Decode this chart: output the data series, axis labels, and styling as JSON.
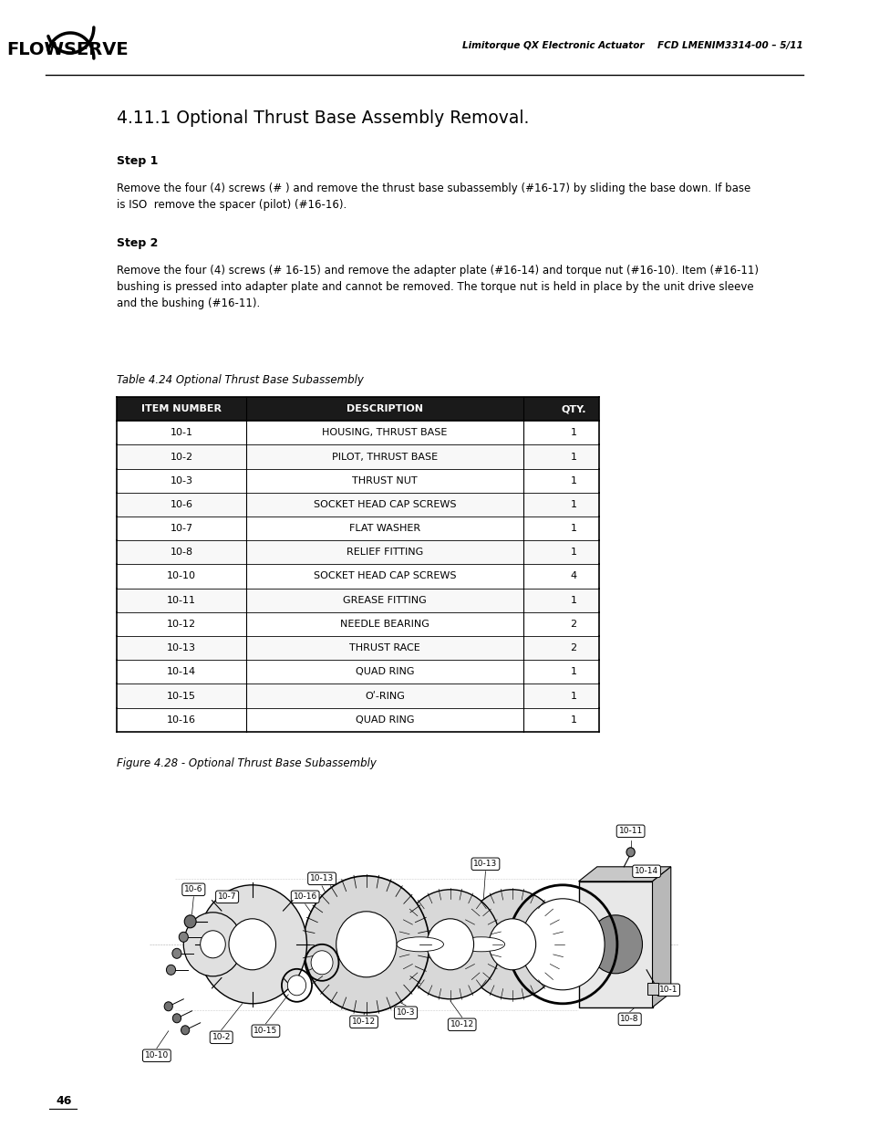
{
  "page_width": 9.54,
  "page_height": 12.35,
  "background_color": "#ffffff",
  "header_right": "Limitorque QX Electronic Actuator    FCD LMENIM3314-00 – 5/11",
  "title": "4.11.1 Optional Thrust Base Assembly Removal.",
  "step1_label": "Step 1",
  "step1_text": "Remove the four (4) screws (# ) and remove the thrust base subassembly (#16-17) by sliding the base down. If base\nis ISO  remove the spacer (pilot) (#16-16).",
  "step2_label": "Step 2",
  "step2_text": "Remove the four (4) screws (# 16-15) and remove the adapter plate (#16-14) and torque nut (#16-10). Item (#16-11)\nbushing is pressed into adapter plate and cannot be removed. The torque nut is held in place by the unit drive sleeve\nand the bushing (#16-11).",
  "table_caption": "Table 4.24 Optional Thrust Base Subassembly",
  "table_header": [
    "ITEM NUMBER",
    "DESCRIPTION",
    "QTY."
  ],
  "table_rows": [
    [
      "10-1",
      "HOUSING, THRUST BASE",
      "1"
    ],
    [
      "10-2",
      "PILOT, THRUST BASE",
      "1"
    ],
    [
      "10-3",
      "THRUST NUT",
      "1"
    ],
    [
      "10-6",
      "SOCKET HEAD CAP SCREWS",
      "1"
    ],
    [
      "10-7",
      "FLAT WASHER",
      "1"
    ],
    [
      "10-8",
      "RELIEF FITTING",
      "1"
    ],
    [
      "10-10",
      "SOCKET HEAD CAP SCREWS",
      "4"
    ],
    [
      "10-11",
      "GREASE FITTING",
      "1"
    ],
    [
      "10-12",
      "NEEDLE BEARING",
      "2"
    ],
    [
      "10-13",
      "THRUST RACE",
      "2"
    ],
    [
      "10-14",
      "QUAD RING",
      "1"
    ],
    [
      "10-15",
      "Oʹ-RING",
      "1"
    ],
    [
      "10-16",
      "QUAD RING",
      "1"
    ]
  ],
  "figure_caption": "Figure 4.28 - Optional Thrust Base Subassembly",
  "page_number": "46",
  "table_header_bg": "#1a1a1a",
  "table_header_fg": "#ffffff"
}
